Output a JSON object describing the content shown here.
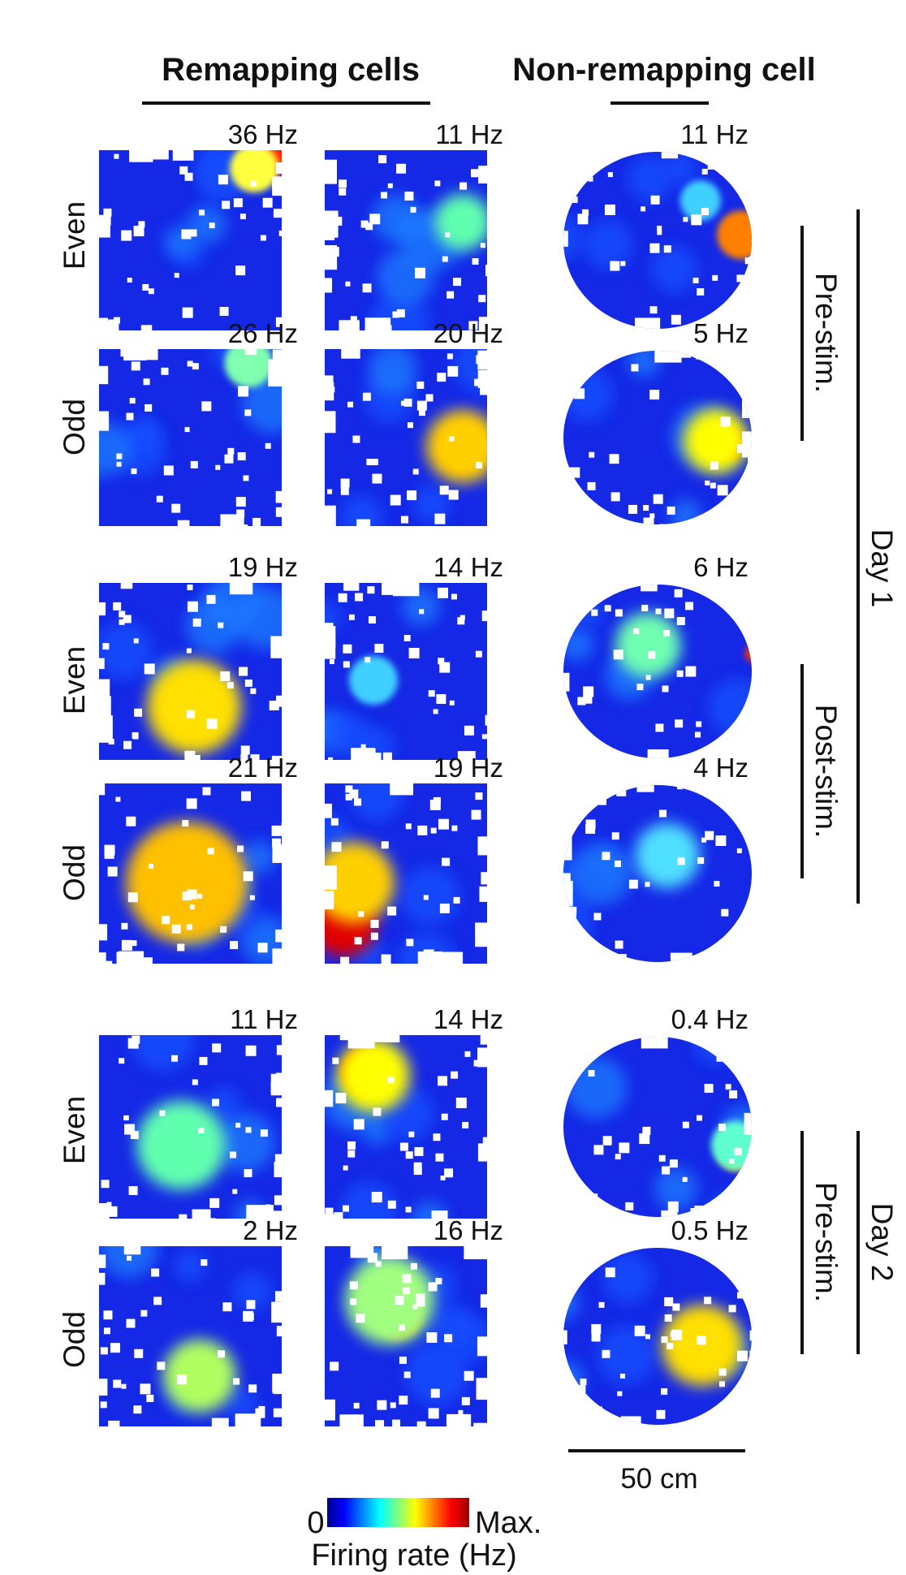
{
  "headers": {
    "remapping": "Remapping cells",
    "non_remapping": "Non-remapping cell"
  },
  "row_labels": [
    "Even",
    "Odd",
    "Even",
    "Odd",
    "Even",
    "Odd"
  ],
  "rate_labels": [
    [
      "36 Hz",
      "11 Hz",
      "11 Hz"
    ],
    [
      "26 Hz",
      "20 Hz",
      "5 Hz"
    ],
    [
      "19 Hz",
      "14 Hz",
      "6 Hz"
    ],
    [
      "21 Hz",
      "19 Hz",
      "4 Hz"
    ],
    [
      "11 Hz",
      "14 Hz",
      "0.4 Hz"
    ],
    [
      "2 Hz",
      "16 Hz",
      "0.5 Hz"
    ]
  ],
  "session_labels": {
    "pre_stim_day1": "Pre-stim.",
    "post_stim_day1": "Post-stim.",
    "pre_stim_day2": "Pre-stim.",
    "day1": "Day 1",
    "day2": "Day 2"
  },
  "scale_bar": "50 cm",
  "colorbar": {
    "min_label": "0",
    "max_label": "Max.",
    "title": "Firing rate (Hz)",
    "colors": [
      "#00008f",
      "#0000ff",
      "#0080ff",
      "#00ffff",
      "#80ff80",
      "#ffff00",
      "#ff8000",
      "#ff0000",
      "#b00000"
    ]
  }
}
